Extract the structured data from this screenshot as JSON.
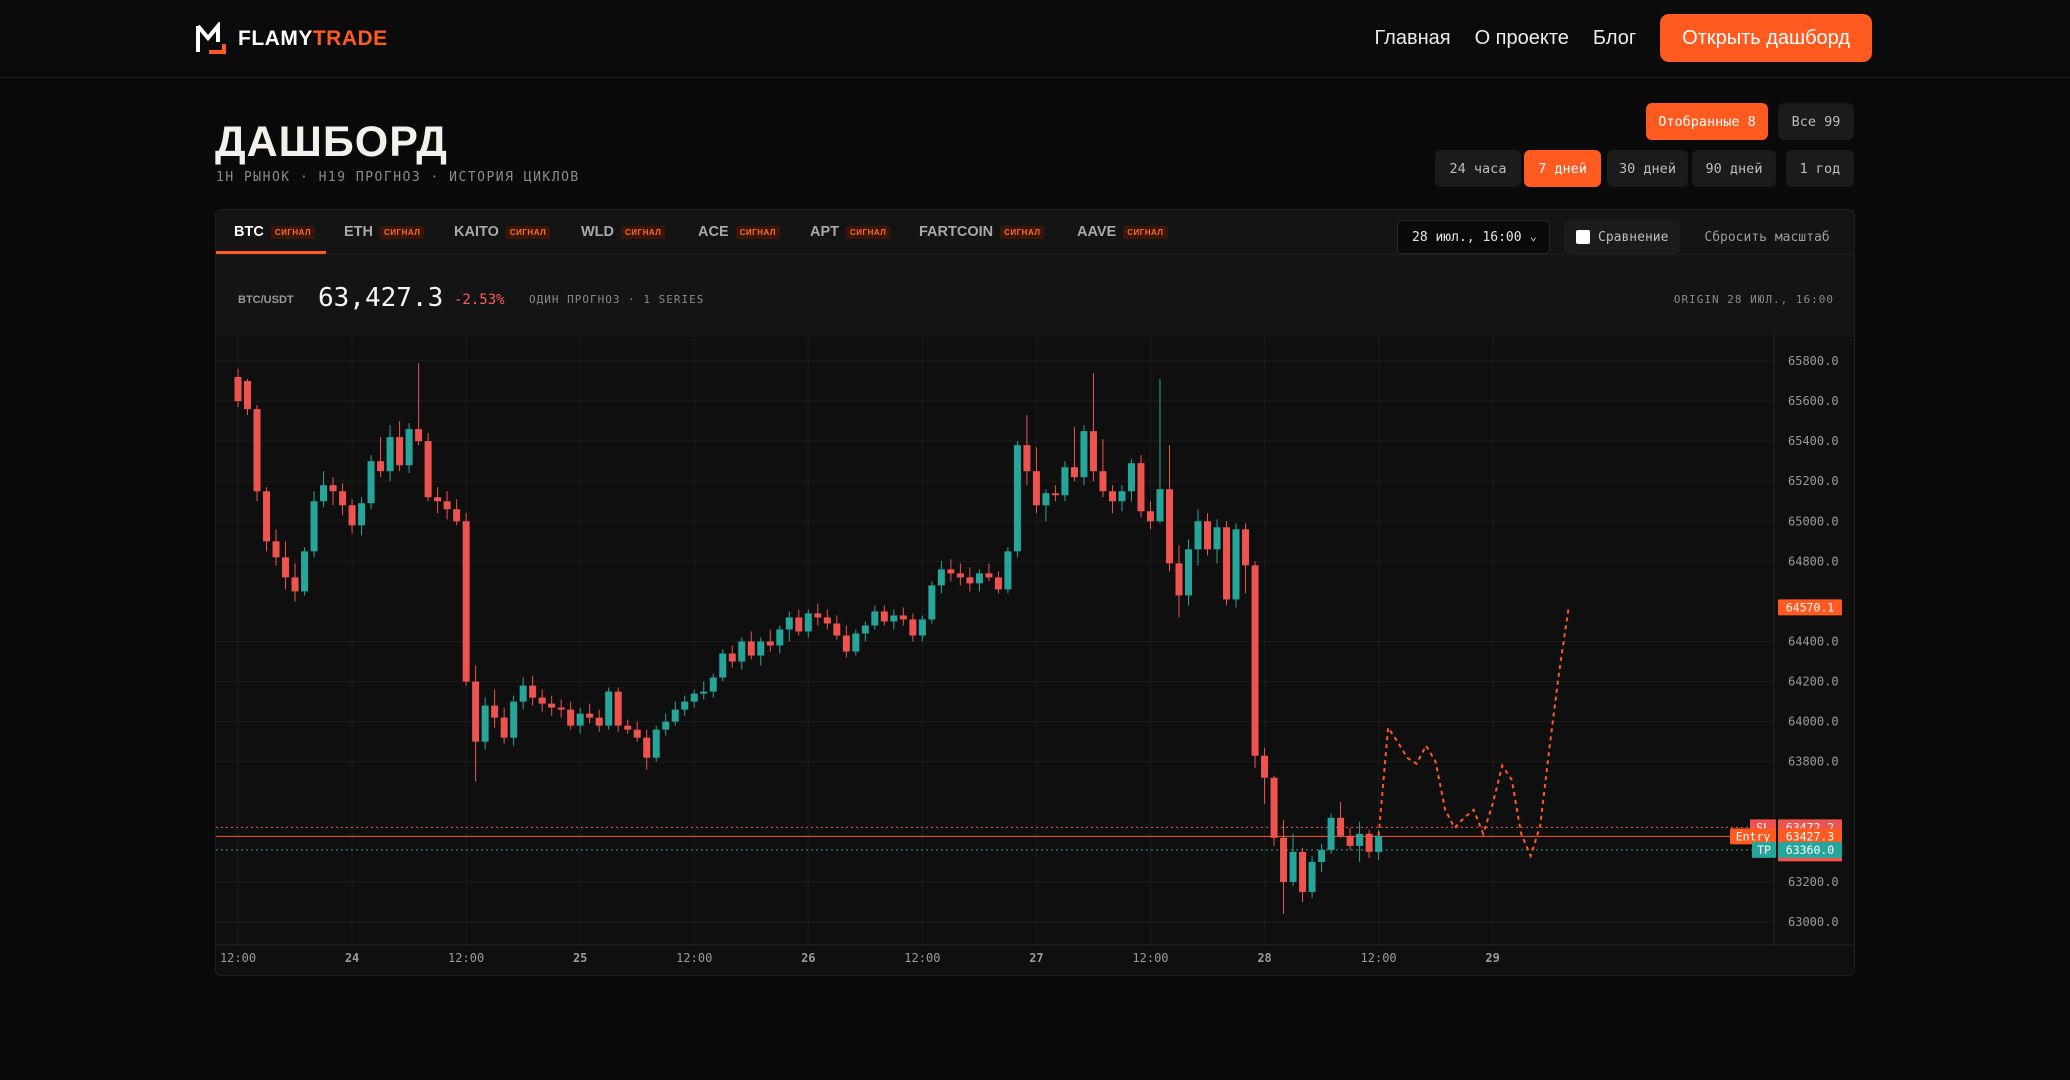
{
  "app": {
    "brand_part1": "FLAMY",
    "brand_part2": "TRADE"
  },
  "nav": {
    "links": [
      "Главная",
      "О проекте",
      "Блог"
    ],
    "cta": "Открыть дашборд"
  },
  "page": {
    "title": "ДАШБОРД",
    "subtitle": "1H РЫНОК · H19 ПРОГНОЗ · ИСТОРИЯ ЦИКЛОВ"
  },
  "filters": {
    "selection": [
      {
        "label": "Отобранные 8",
        "active": true
      },
      {
        "label": "Все 99",
        "active": false
      }
    ],
    "ranges": [
      {
        "label": "24 часа",
        "active": false
      },
      {
        "label": "7 дней",
        "active": true
      },
      {
        "label": "30 дней",
        "active": false
      },
      {
        "label": "90 дней",
        "active": false
      },
      {
        "label": "1 год",
        "active": false
      }
    ]
  },
  "tabs": [
    {
      "symbol": "BTC",
      "badge": "СИГНАЛ",
      "active": true
    },
    {
      "symbol": "ETH",
      "badge": "СИГНАЛ",
      "active": false
    },
    {
      "symbol": "KAITO",
      "badge": "СИГНАЛ",
      "active": false
    },
    {
      "symbol": "WLD",
      "badge": "СИГНАЛ",
      "active": false
    },
    {
      "symbol": "ACE",
      "badge": "СИГНАЛ",
      "active": false
    },
    {
      "symbol": "APT",
      "badge": "СИГНАЛ",
      "active": false
    },
    {
      "symbol": "FARTCOIN",
      "badge": "СИГНАЛ",
      "active": false
    },
    {
      "symbol": "AAVE",
      "badge": "СИГНАЛ",
      "active": false
    }
  ],
  "controls": {
    "date_value": "28 июл., 16:00",
    "compare_label": "Сравнение",
    "compare_checked": false,
    "reset_label": "Сбросить масштаб"
  },
  "ticker": {
    "pair": "BTC/USDT",
    "price": "63,427.3",
    "change": "-2.53%",
    "series_info": "ОДИН ПРОГНОЗ · 1 SERIES",
    "origin": "ORIGIN 28 ИЮЛ., 16:00"
  },
  "colors": {
    "accent": "#ff5a1f",
    "up": "#26a69a",
    "down": "#ef5350",
    "background": "#0a0a0a"
  },
  "chart_data": {
    "type": "candlestick",
    "y_ticks": [
      "65800.0",
      "65600.0",
      "65400.0",
      "65200.0",
      "65000.0",
      "64800.0",
      "64400.0",
      "64200.0",
      "64000.0",
      "63800.0",
      "63200.0",
      "63000.0"
    ],
    "ylim": [
      62900,
      65900
    ],
    "x_ticks": [
      "12:00",
      "24",
      "12:00",
      "25",
      "12:00",
      "26",
      "12:00",
      "27",
      "12:00",
      "28",
      "12:00",
      "29"
    ],
    "x_tick_index": [
      0,
      12,
      24,
      36,
      48,
      60,
      72,
      84,
      96,
      108,
      120,
      132
    ],
    "grid": true,
    "candles": [
      [
        65720,
        65760,
        65570,
        65600
      ],
      [
        65700,
        65710,
        65530,
        65560
      ],
      [
        65560,
        65580,
        65100,
        65150
      ],
      [
        65150,
        65170,
        64850,
        64900
      ],
      [
        64900,
        64960,
        64780,
        64820
      ],
      [
        64820,
        64900,
        64660,
        64720
      ],
      [
        64720,
        64790,
        64600,
        64650
      ],
      [
        64650,
        64870,
        64630,
        64850
      ],
      [
        64850,
        65150,
        64820,
        65100
      ],
      [
        65100,
        65250,
        65070,
        65180
      ],
      [
        65180,
        65220,
        65080,
        65150
      ],
      [
        65150,
        65190,
        65030,
        65080
      ],
      [
        65080,
        65110,
        64940,
        64980
      ],
      [
        64980,
        65120,
        64930,
        65090
      ],
      [
        65090,
        65330,
        65060,
        65300
      ],
      [
        65300,
        65420,
        65220,
        65250
      ],
      [
        65250,
        65480,
        65200,
        65420
      ],
      [
        65420,
        65500,
        65250,
        65280
      ],
      [
        65280,
        65490,
        65240,
        65460
      ],
      [
        65460,
        65790,
        65380,
        65400
      ],
      [
        65400,
        65440,
        65100,
        65120
      ],
      [
        65120,
        65170,
        65040,
        65100
      ],
      [
        65100,
        65150,
        65010,
        65060
      ],
      [
        65060,
        65110,
        64980,
        65000
      ],
      [
        65000,
        65040,
        64180,
        64200
      ],
      [
        64200,
        64280,
        63700,
        63900
      ],
      [
        63900,
        64120,
        63860,
        64080
      ],
      [
        64080,
        64160,
        63970,
        64020
      ],
      [
        64020,
        64070,
        63890,
        63920
      ],
      [
        63920,
        64130,
        63880,
        64100
      ],
      [
        64100,
        64220,
        64060,
        64180
      ],
      [
        64180,
        64230,
        64080,
        64120
      ],
      [
        64120,
        64160,
        64050,
        64090
      ],
      [
        64090,
        64130,
        64030,
        64070
      ],
      [
        64070,
        64110,
        64020,
        64060
      ],
      [
        64060,
        64100,
        63960,
        63980
      ],
      [
        63980,
        64070,
        63940,
        64040
      ],
      [
        64040,
        64090,
        63990,
        64020
      ],
      [
        64020,
        64060,
        63950,
        63980
      ],
      [
        63980,
        64170,
        63960,
        64150
      ],
      [
        64150,
        64170,
        63950,
        63980
      ],
      [
        63980,
        64010,
        63940,
        63960
      ],
      [
        63960,
        64000,
        63900,
        63920
      ],
      [
        63920,
        63960,
        63760,
        63820
      ],
      [
        63820,
        63980,
        63800,
        63960
      ],
      [
        63960,
        64040,
        63930,
        64000
      ],
      [
        64000,
        64100,
        63980,
        64060
      ],
      [
        64060,
        64130,
        64030,
        64100
      ],
      [
        64100,
        64160,
        64070,
        64140
      ],
      [
        64140,
        64200,
        64110,
        64150
      ],
      [
        64150,
        64240,
        64120,
        64220
      ],
      [
        64220,
        64360,
        64200,
        64340
      ],
      [
        64340,
        64380,
        64270,
        64300
      ],
      [
        64300,
        64420,
        64260,
        64400
      ],
      [
        64400,
        64450,
        64310,
        64330
      ],
      [
        64330,
        64420,
        64280,
        64400
      ],
      [
        64400,
        64460,
        64350,
        64380
      ],
      [
        64380,
        64480,
        64340,
        64460
      ],
      [
        64460,
        64550,
        64400,
        64520
      ],
      [
        64520,
        64560,
        64430,
        64450
      ],
      [
        64450,
        64560,
        64420,
        64540
      ],
      [
        64540,
        64590,
        64480,
        64520
      ],
      [
        64520,
        64560,
        64460,
        64490
      ],
      [
        64490,
        64530,
        64410,
        64430
      ],
      [
        64430,
        64480,
        64320,
        64350
      ],
      [
        64350,
        64460,
        64330,
        64440
      ],
      [
        64440,
        64500,
        64400,
        64480
      ],
      [
        64480,
        64580,
        64460,
        64550
      ],
      [
        64550,
        64580,
        64480,
        64500
      ],
      [
        64500,
        64560,
        64460,
        64530
      ],
      [
        64530,
        64570,
        64480,
        64510
      ],
      [
        64510,
        64540,
        64400,
        64430
      ],
      [
        64430,
        64530,
        64400,
        64510
      ],
      [
        64510,
        64700,
        64490,
        64680
      ],
      [
        64680,
        64800,
        64640,
        64760
      ],
      [
        64760,
        64810,
        64700,
        64740
      ],
      [
        64740,
        64790,
        64680,
        64720
      ],
      [
        64720,
        64770,
        64650,
        64690
      ],
      [
        64690,
        64760,
        64650,
        64740
      ],
      [
        64740,
        64790,
        64700,
        64720
      ],
      [
        64720,
        64750,
        64640,
        64660
      ],
      [
        64660,
        64870,
        64640,
        64850
      ],
      [
        64850,
        65400,
        64820,
        65380
      ],
      [
        65380,
        65530,
        65180,
        65250
      ],
      [
        65250,
        65370,
        65040,
        65080
      ],
      [
        65080,
        65160,
        65000,
        65140
      ],
      [
        65140,
        65180,
        65100,
        65130
      ],
      [
        65130,
        65300,
        65100,
        65270
      ],
      [
        65270,
        65470,
        65200,
        65220
      ],
      [
        65220,
        65480,
        65180,
        65450
      ],
      [
        65450,
        65740,
        65200,
        65250
      ],
      [
        65250,
        65410,
        65120,
        65150
      ],
      [
        65150,
        65180,
        65040,
        65100
      ],
      [
        65100,
        65180,
        65050,
        65150
      ],
      [
        65150,
        65310,
        65100,
        65290
      ],
      [
        65290,
        65330,
        65020,
        65050
      ],
      [
        65050,
        65100,
        64960,
        65000
      ],
      [
        65000,
        65710,
        64990,
        65160
      ],
      [
        65160,
        65380,
        64750,
        64790
      ],
      [
        64790,
        64880,
        64520,
        64630
      ],
      [
        64630,
        64910,
        64580,
        64860
      ],
      [
        64860,
        65060,
        64780,
        65000
      ],
      [
        65000,
        65040,
        64830,
        64860
      ],
      [
        64860,
        65010,
        64790,
        64970
      ],
      [
        64970,
        65000,
        64580,
        64610
      ],
      [
        64610,
        64990,
        64570,
        64960
      ],
      [
        64960,
        64990,
        64640,
        64780
      ],
      [
        64780,
        64800,
        63770,
        63830
      ],
      [
        63830,
        63870,
        63590,
        63720
      ],
      [
        63720,
        63730,
        63380,
        63420
      ],
      [
        63420,
        63510,
        63040,
        63200
      ],
      [
        63200,
        63440,
        63180,
        63350
      ],
      [
        63350,
        63370,
        63100,
        63150
      ],
      [
        63150,
        63330,
        63120,
        63300
      ],
      [
        63300,
        63390,
        63250,
        63360
      ],
      [
        63360,
        63540,
        63340,
        63520
      ],
      [
        63520,
        63600,
        63420,
        63430
      ],
      [
        63430,
        63470,
        63360,
        63380
      ],
      [
        63380,
        63500,
        63300,
        63440
      ],
      [
        63440,
        63460,
        63320,
        63350
      ],
      [
        63350,
        63460,
        63310,
        63430
      ]
    ],
    "forecast": {
      "start_index": 120,
      "points": [
        [
          120,
          63430
        ],
        [
          121,
          63970
        ],
        [
          122,
          63900
        ],
        [
          123,
          63820
        ],
        [
          124,
          63790
        ],
        [
          125,
          63880
        ],
        [
          126,
          63800
        ],
        [
          127,
          63560
        ],
        [
          128,
          63470
        ],
        [
          129,
          63520
        ],
        [
          130,
          63560
        ],
        [
          131,
          63440
        ],
        [
          132,
          63590
        ],
        [
          133,
          63780
        ],
        [
          134,
          63710
        ],
        [
          135,
          63440
        ],
        [
          136,
          63330
        ],
        [
          137,
          63480
        ],
        [
          138,
          63880
        ],
        [
          139,
          64250
        ],
        [
          140,
          64570
        ]
      ]
    },
    "levels": {
      "sl": {
        "label": "SL",
        "value": "63472.2",
        "y": 63472.2
      },
      "entry": {
        "label": "Entry",
        "value": "63427.3",
        "y": 63427.3
      },
      "current": {
        "value": "63427.3",
        "y": 63427.3
      },
      "tp": {
        "label": "TP",
        "value": "63360.0",
        "y": 63360.0
      },
      "forecast_end": {
        "value": "64570.1",
        "y": 64570.1
      }
    }
  }
}
